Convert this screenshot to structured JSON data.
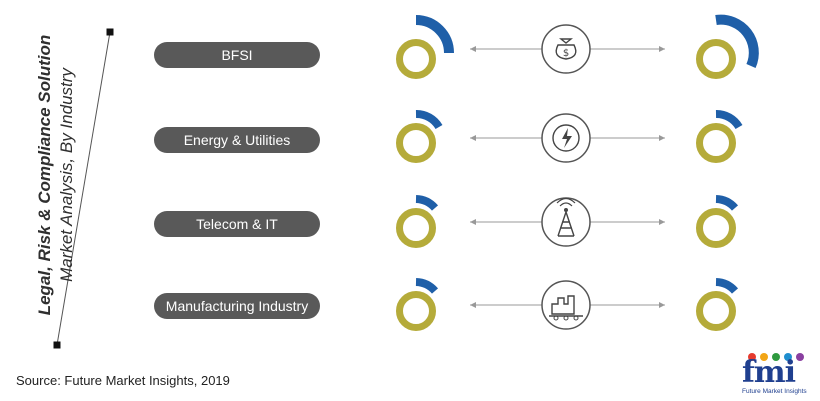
{
  "title": {
    "line1": "Legal, Risk & Compliance Solution",
    "line2": "Market Analysis, By Industry"
  },
  "industries": [
    {
      "label": "BFSI",
      "icon": "money-bag-icon"
    },
    {
      "label": "Energy & Utilities",
      "icon": "energy-icon"
    },
    {
      "label": "Telecom & IT",
      "icon": "telecom-tower-icon"
    },
    {
      "label": "Manufacturing Industry",
      "icon": "factory-icon"
    }
  ],
  "source": "Source: Future Market Insights, 2019",
  "logo": {
    "letters": "fmi",
    "tagline": "Future Market Insights"
  },
  "colors": {
    "ring": "#b5ab3a",
    "share": "#1f5fa8",
    "pill": "#595959",
    "text": "#2f2f2f"
  }
}
